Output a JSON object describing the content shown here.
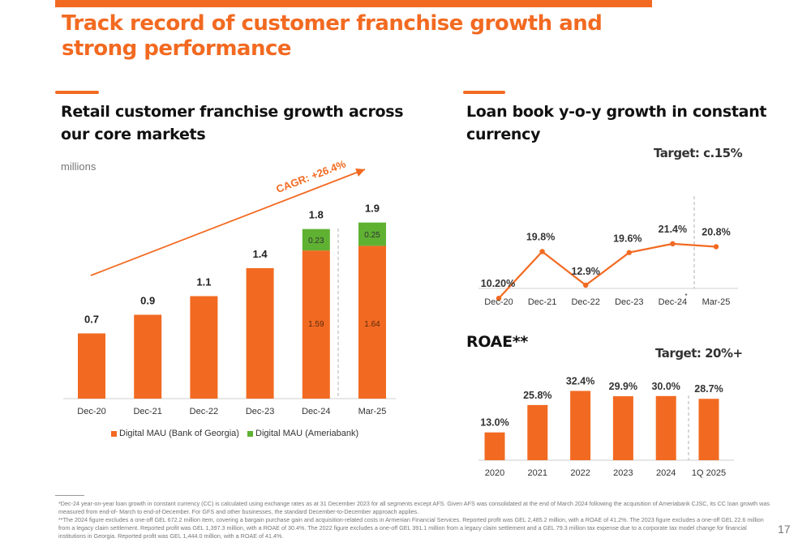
{
  "title": "Track record of customer franchise growth and strong performance",
  "left": {
    "heading": "Retail customer franchise growth across our core markets",
    "units": "millions",
    "cagr_label": "CAGR: +26.4%",
    "legend": [
      "Digital MAU (Bank of Georgia)",
      "Digital MAU (Ameriabank)"
    ]
  },
  "loan": {
    "heading": "Loan book y-o-y growth in constant currency",
    "target": "Target: c.15%",
    "footnote_marker": "*"
  },
  "roae": {
    "heading": "ROAE**",
    "target": "Target: 20%+"
  },
  "colors": {
    "orange": "#f26a21",
    "green": "#5fb132"
  },
  "chart_data": [
    {
      "type": "bar",
      "categories": [
        "Dec-20",
        "Dec-21",
        "Dec-22",
        "Dec-23",
        "Dec-24",
        "Mar-25"
      ],
      "series": [
        {
          "name": "Digital MAU (Bank of Georgia)",
          "values": [
            0.7,
            0.9,
            1.1,
            1.4,
            1.59,
            1.64
          ],
          "labels": [
            null,
            null,
            null,
            null,
            "1.59",
            "1.64"
          ]
        },
        {
          "name": "Digital MAU (Ameriabank)",
          "values": [
            0,
            0,
            0,
            0,
            0.23,
            0.25
          ],
          "labels": [
            null,
            null,
            null,
            null,
            "0.23",
            "0.25"
          ]
        }
      ],
      "totals": [
        "0.7",
        "0.9",
        "1.1",
        "1.4",
        "1.8",
        "1.9"
      ],
      "ylabel": "millions",
      "annotation": "CAGR: +26.4%",
      "ylim": [
        0,
        2.0
      ]
    },
    {
      "type": "line",
      "categories": [
        "Dec-20",
        "Dec-21",
        "Dec-22",
        "Dec-23",
        "Dec-24",
        "Mar-25"
      ],
      "values": [
        10.2,
        19.8,
        12.9,
        19.6,
        21.4,
        20.8
      ],
      "labels": [
        "10.20%",
        "19.8%",
        "12.9%",
        "19.6%",
        "21.4%",
        "20.8%"
      ],
      "annotation": "Target: c.15%"
    },
    {
      "type": "bar",
      "categories": [
        "2020",
        "2021",
        "2022",
        "2023",
        "2024",
        "1Q 2025"
      ],
      "values": [
        13.0,
        25.8,
        32.4,
        29.9,
        30.0,
        28.7
      ],
      "labels": [
        "13.0%",
        "25.8%",
        "32.4%",
        "29.9%",
        "30.0%",
        "28.7%"
      ],
      "annotation": "Target: 20%+"
    }
  ],
  "footnotes": [
    "*Dec-24 year-on-year loan growth in constant currency (CC) is calculated using exchange rates as at 31 December 2023 for all segments except AFS. Given AFS was consolidated at the end of March 2024 following the acquisition of Ameriabank CJSC, its CC loan growth was measured from end-of- March to end-of-December. For GFS and other businesses, the standard December-to-December approach applies.",
    "**The 2024 figure excludes a one-off GEL 672.2 million item, covering a bargain purchase gain and acquisition-related costs in Armenian Financial Services. Reported profit was GEL 2,485.2 million, with a ROAE of 41.2%. The 2023 figure excludes a one-off GEL 22.6 million from a legacy claim settlement. Reported profit was GEL 1,397.3 million, with a ROAE of 30.4%. The 2022 figure excludes a one-off GEL 391.1 million from a legacy claim settlement and a GEL 79.3 million tax expense due to a corporate tax model change for financial institutions in Georgia. Reported profit was GEL 1,444.0 million, with a ROAE of 41.4%."
  ],
  "page_number": "17"
}
